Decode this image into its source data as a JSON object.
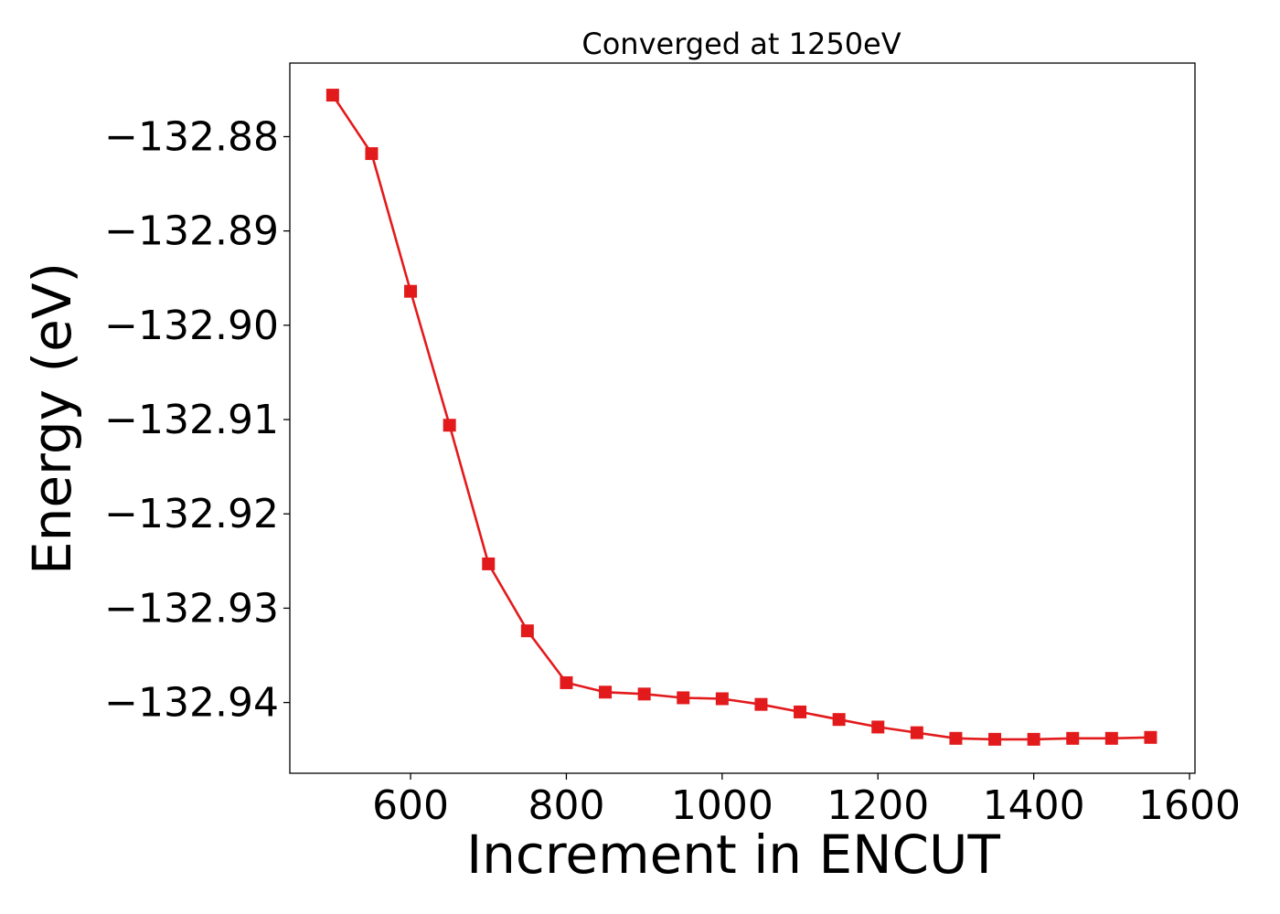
{
  "chart_data": {
    "type": "line",
    "title": "Converged at 1250eV",
    "xlabel": "Increment in ENCUT",
    "ylabel": "Energy (eV)",
    "xlim": [
      445,
      1607
    ],
    "ylim": [
      -132.9475,
      -132.8722
    ],
    "xticks": [
      600,
      800,
      1000,
      1200,
      1400,
      1600
    ],
    "xtick_labels": [
      "600",
      "800",
      "1000",
      "1200",
      "1400",
      "1600"
    ],
    "yticks": [
      -132.88,
      -132.89,
      -132.9,
      -132.91,
      -132.92,
      -132.93,
      -132.94
    ],
    "ytick_labels": [
      "−132.88",
      "−132.89",
      "−132.90",
      "−132.91",
      "−132.92",
      "−132.93",
      "−132.94"
    ],
    "grid": false,
    "series": [
      {
        "color": "#e31a1c",
        "marker": "square",
        "x": [
          500,
          550,
          600,
          650,
          700,
          750,
          800,
          850,
          900,
          950,
          1000,
          1050,
          1100,
          1150,
          1200,
          1250,
          1300,
          1350,
          1400,
          1450,
          1500,
          1550
        ],
        "y": [
          -132.8756,
          -132.8818,
          -132.8964,
          -132.9106,
          -132.9253,
          -132.9324,
          -132.9379,
          -132.9389,
          -132.9391,
          -132.9395,
          -132.9396,
          -132.9402,
          -132.941,
          -132.9418,
          -132.9426,
          -132.9432,
          -132.9438,
          -132.9439,
          -132.9439,
          -132.9438,
          -132.9438,
          -132.9437
        ]
      }
    ]
  }
}
